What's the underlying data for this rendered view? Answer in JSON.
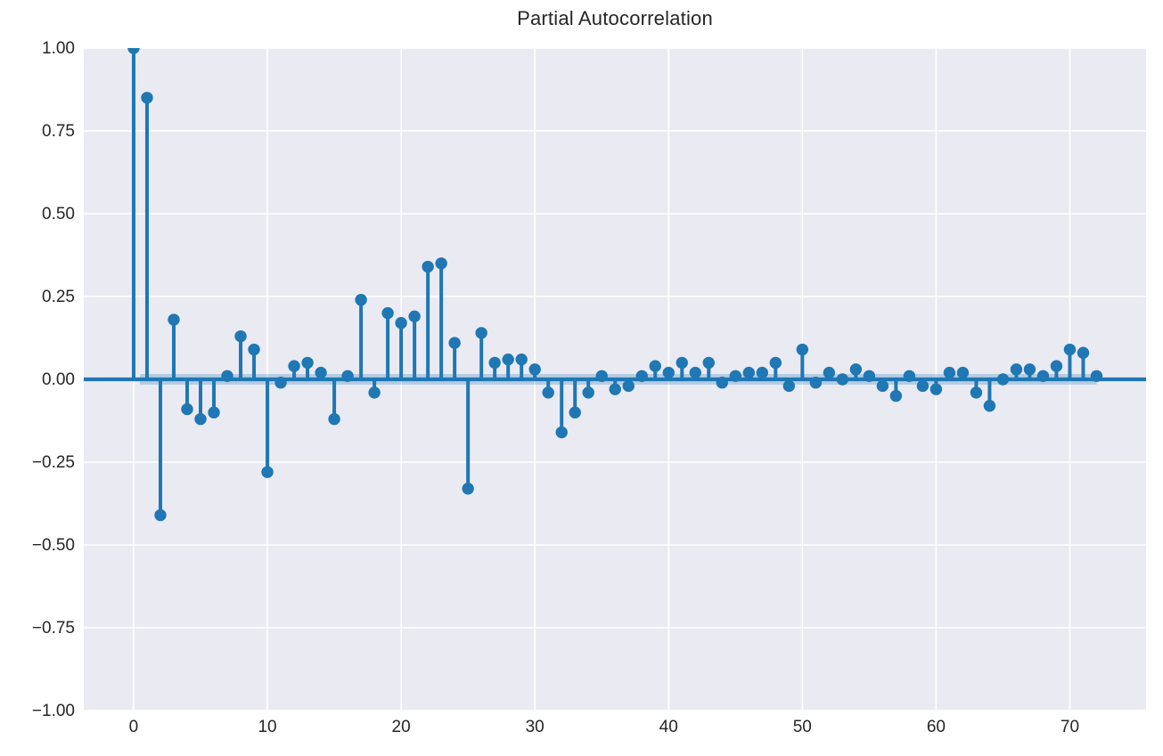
{
  "title": "Partial Autocorrelation",
  "colors": {
    "figure_background": "#ffffff",
    "axes_background": "#eaeaf2",
    "grid": "#ffffff",
    "stem": "#1f77b4",
    "confidence_band": "rgba(31,119,180,0.26)",
    "text": "#262626"
  },
  "chart_data": {
    "type": "stem",
    "title": "Partial Autocorrelation",
    "xlabel": "",
    "ylabel": "",
    "x": [
      0,
      1,
      2,
      3,
      4,
      5,
      6,
      7,
      8,
      9,
      10,
      11,
      12,
      13,
      14,
      15,
      16,
      17,
      18,
      19,
      20,
      21,
      22,
      23,
      24,
      25,
      26,
      27,
      28,
      29,
      30,
      31,
      32,
      33,
      34,
      35,
      36,
      37,
      38,
      39,
      40,
      41,
      42,
      43,
      44,
      45,
      46,
      47,
      48,
      49,
      50,
      51,
      52,
      53,
      54,
      55,
      56,
      57,
      58,
      59,
      60,
      61,
      62,
      63,
      64,
      65,
      66,
      67,
      68,
      69,
      70,
      71,
      72
    ],
    "values": [
      1.0,
      0.85,
      -0.41,
      0.18,
      -0.09,
      -0.12,
      -0.1,
      0.01,
      0.13,
      0.09,
      -0.28,
      -0.01,
      0.04,
      0.05,
      0.02,
      -0.12,
      0.01,
      0.24,
      -0.04,
      0.2,
      0.17,
      0.19,
      0.34,
      0.35,
      0.11,
      -0.33,
      0.14,
      0.05,
      0.06,
      0.06,
      0.03,
      -0.04,
      -0.16,
      -0.1,
      -0.04,
      0.01,
      -0.03,
      -0.02,
      0.01,
      0.04,
      0.02,
      0.05,
      0.02,
      0.05,
      -0.01,
      0.01,
      0.02,
      0.02,
      0.05,
      -0.02,
      0.09,
      -0.01,
      0.02,
      0.0,
      0.03,
      0.01,
      -0.02,
      -0.05,
      0.01,
      -0.02,
      -0.03,
      0.02,
      0.02,
      -0.04,
      -0.08,
      0.0,
      0.03,
      0.03,
      0.01,
      0.04,
      0.09,
      0.08,
      0.01
    ],
    "xticks": [
      0,
      10,
      20,
      30,
      40,
      50,
      60,
      70
    ],
    "xtick_labels": [
      "0",
      "10",
      "20",
      "30",
      "40",
      "50",
      "60",
      "70"
    ],
    "yticks": [
      1.0,
      0.75,
      0.5,
      0.25,
      0.0,
      -0.25,
      -0.5,
      -0.75,
      -1.0
    ],
    "ytick_labels": [
      "1.00",
      "0.75",
      "0.50",
      "0.25",
      "0.00",
      "−0.25",
      "−0.50",
      "−0.75",
      "−1.00"
    ],
    "xlim": [
      -3.73,
      75.7
    ],
    "ylim": [
      -1.0,
      1.0
    ],
    "grid": true,
    "legend": "none",
    "zero_line": 0.0,
    "confidence_band": {
      "low": -0.016,
      "high": 0.016,
      "x_start": 0.47,
      "x_end": 72
    }
  }
}
